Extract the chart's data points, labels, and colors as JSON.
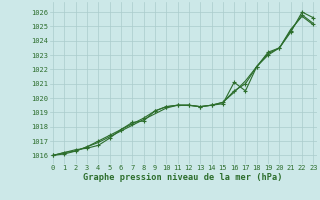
{
  "title": "Graphe pression niveau de la mer (hPa)",
  "bg_color": "#cce8e8",
  "grid_color": "#aacccc",
  "line_color": "#2d6e2d",
  "text_color": "#2d6e2d",
  "xlim": [
    -0.3,
    23.3
  ],
  "ylim": [
    1015.4,
    1026.7
  ],
  "yticks": [
    1016,
    1017,
    1018,
    1019,
    1020,
    1021,
    1022,
    1023,
    1024,
    1025,
    1026
  ],
  "xticks": [
    0,
    1,
    2,
    3,
    4,
    5,
    6,
    7,
    8,
    9,
    10,
    11,
    12,
    13,
    14,
    15,
    16,
    17,
    18,
    19,
    20,
    21,
    22,
    23
  ],
  "series1": [
    1016.0,
    1016.2,
    1016.4,
    1016.5,
    1016.7,
    1017.2,
    1017.8,
    1018.3,
    1018.4,
    1019.1,
    1019.4,
    1019.5,
    1019.5,
    1019.4,
    1019.5,
    1019.6,
    1021.1,
    1020.5,
    1022.2,
    1023.2,
    1023.5,
    1024.6,
    1026.0,
    1025.6
  ],
  "series2": [
    1016.0,
    1016.1,
    1016.3,
    1016.6,
    1017.0,
    1017.4,
    1017.8,
    1018.2,
    1018.6,
    1019.1,
    1019.4,
    1019.5,
    1019.5,
    1019.4,
    1019.5,
    1019.7,
    1020.5,
    1021.0,
    1022.2,
    1023.0,
    1023.5,
    1024.7,
    1025.8,
    1025.2
  ],
  "series3": [
    1016.0,
    1016.2,
    1016.3,
    1016.6,
    1016.9,
    1017.3,
    1017.7,
    1018.1,
    1018.5,
    1018.9,
    1019.3,
    1019.5,
    1019.5,
    1019.4,
    1019.5,
    1019.7,
    1020.4,
    1021.2,
    1022.2,
    1023.1,
    1023.5,
    1024.8,
    1025.7,
    1025.1
  ],
  "tick_fontsize": 5.0,
  "label_fontsize": 6.2
}
